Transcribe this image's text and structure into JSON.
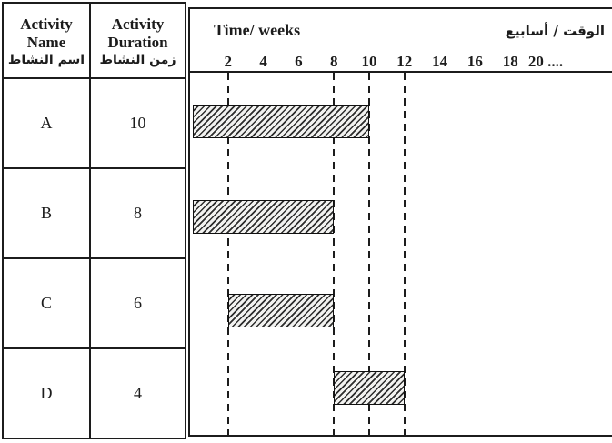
{
  "table": {
    "header": {
      "name_en": "Activity Name",
      "name_ar": "اسم النشاط",
      "duration_en": "Activity Duration",
      "duration_ar": "زمن النشاط"
    },
    "rows": [
      {
        "name": "A",
        "duration": "10"
      },
      {
        "name": "B",
        "duration": "8"
      },
      {
        "name": "C",
        "duration": "6"
      },
      {
        "name": "D",
        "duration": "4"
      }
    ]
  },
  "chart_data": {
    "type": "bar",
    "subtype": "gantt",
    "title": "Time/ weeks",
    "title_ar": "الوقت / أسابيع",
    "xlabel": "Time/ weeks",
    "x_range": [
      0,
      24
    ],
    "x_ticks": [
      2,
      4,
      6,
      8,
      10,
      12,
      14,
      16,
      18,
      20
    ],
    "x_tick_labels": [
      "2",
      "4",
      "6",
      "8",
      "10",
      "12",
      "14",
      "16",
      "18",
      "20 ...."
    ],
    "dashed_gridlines_at": [
      2,
      8,
      10,
      12
    ],
    "grid": "dashed-vertical-only",
    "bar_style": "diagonal-hatch",
    "legend": "none",
    "series": [
      {
        "activity": "A",
        "duration": 10,
        "start": 0,
        "end": 10
      },
      {
        "activity": "B",
        "duration": 8,
        "start": 0,
        "end": 8
      },
      {
        "activity": "C",
        "duration": 6,
        "start": 2,
        "end": 8
      },
      {
        "activity": "D",
        "duration": 4,
        "start": 8,
        "end": 12
      }
    ]
  },
  "colors": {
    "ink": "#1c1c1c",
    "paper": "#ffffff",
    "hatch_line": "#2e2e2e",
    "bar_fill": "#f2f2f0"
  }
}
